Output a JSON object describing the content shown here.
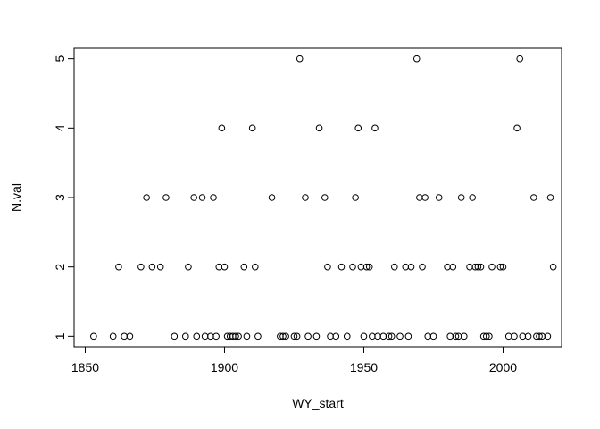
{
  "chart_data": {
    "type": "scatter",
    "title": "",
    "xlabel": "WY_start",
    "ylabel": "N.val",
    "xlim": [
      1846,
      2021
    ],
    "ylim": [
      0.85,
      5.15
    ],
    "xticks": [
      1850,
      1900,
      1950,
      2000
    ],
    "yticks": [
      1,
      2,
      3,
      4,
      5
    ],
    "grid": false,
    "marker": "open-circle",
    "color": "#000000",
    "points": [
      [
        1853,
        1
      ],
      [
        1860,
        1
      ],
      [
        1862,
        2
      ],
      [
        1864,
        1
      ],
      [
        1866,
        1
      ],
      [
        1870,
        2
      ],
      [
        1872,
        3
      ],
      [
        1874,
        2
      ],
      [
        1877,
        2
      ],
      [
        1879,
        3
      ],
      [
        1882,
        1
      ],
      [
        1886,
        1
      ],
      [
        1887,
        2
      ],
      [
        1889,
        3
      ],
      [
        1890,
        1
      ],
      [
        1892,
        3
      ],
      [
        1893,
        1
      ],
      [
        1895,
        1
      ],
      [
        1896,
        3
      ],
      [
        1897,
        1
      ],
      [
        1898,
        2
      ],
      [
        1899,
        4
      ],
      [
        1900,
        2
      ],
      [
        1901,
        1
      ],
      [
        1902,
        1
      ],
      [
        1903,
        1
      ],
      [
        1904,
        1
      ],
      [
        1905,
        1
      ],
      [
        1907,
        2
      ],
      [
        1908,
        1
      ],
      [
        1910,
        4
      ],
      [
        1911,
        2
      ],
      [
        1912,
        1
      ],
      [
        1917,
        3
      ],
      [
        1920,
        1
      ],
      [
        1921,
        1
      ],
      [
        1922,
        1
      ],
      [
        1925,
        1
      ],
      [
        1926,
        1
      ],
      [
        1927,
        5
      ],
      [
        1929,
        3
      ],
      [
        1930,
        1
      ],
      [
        1933,
        1
      ],
      [
        1934,
        4
      ],
      [
        1936,
        3
      ],
      [
        1937,
        2
      ],
      [
        1938,
        1
      ],
      [
        1940,
        1
      ],
      [
        1942,
        2
      ],
      [
        1944,
        1
      ],
      [
        1946,
        2
      ],
      [
        1947,
        3
      ],
      [
        1948,
        4
      ],
      [
        1949,
        2
      ],
      [
        1950,
        1
      ],
      [
        1951,
        2
      ],
      [
        1952,
        2
      ],
      [
        1953,
        1
      ],
      [
        1954,
        4
      ],
      [
        1955,
        1
      ],
      [
        1957,
        1
      ],
      [
        1959,
        1
      ],
      [
        1960,
        1
      ],
      [
        1961,
        2
      ],
      [
        1963,
        1
      ],
      [
        1965,
        2
      ],
      [
        1966,
        1
      ],
      [
        1967,
        2
      ],
      [
        1969,
        5
      ],
      [
        1970,
        3
      ],
      [
        1971,
        2
      ],
      [
        1972,
        3
      ],
      [
        1973,
        1
      ],
      [
        1975,
        1
      ],
      [
        1977,
        3
      ],
      [
        1980,
        2
      ],
      [
        1981,
        1
      ],
      [
        1982,
        2
      ],
      [
        1983,
        1
      ],
      [
        1984,
        1
      ],
      [
        1985,
        3
      ],
      [
        1986,
        1
      ],
      [
        1988,
        2
      ],
      [
        1989,
        3
      ],
      [
        1990,
        2
      ],
      [
        1991,
        2
      ],
      [
        1992,
        2
      ],
      [
        1993,
        1
      ],
      [
        1994,
        1
      ],
      [
        1995,
        1
      ],
      [
        1996,
        2
      ],
      [
        1999,
        2
      ],
      [
        2000,
        2
      ],
      [
        2002,
        1
      ],
      [
        2004,
        1
      ],
      [
        2005,
        4
      ],
      [
        2006,
        5
      ],
      [
        2007,
        1
      ],
      [
        2009,
        1
      ],
      [
        2011,
        3
      ],
      [
        2012,
        1
      ],
      [
        2013,
        1
      ],
      [
        2014,
        1
      ],
      [
        2016,
        1
      ],
      [
        2017,
        3
      ],
      [
        2018,
        2
      ]
    ]
  }
}
